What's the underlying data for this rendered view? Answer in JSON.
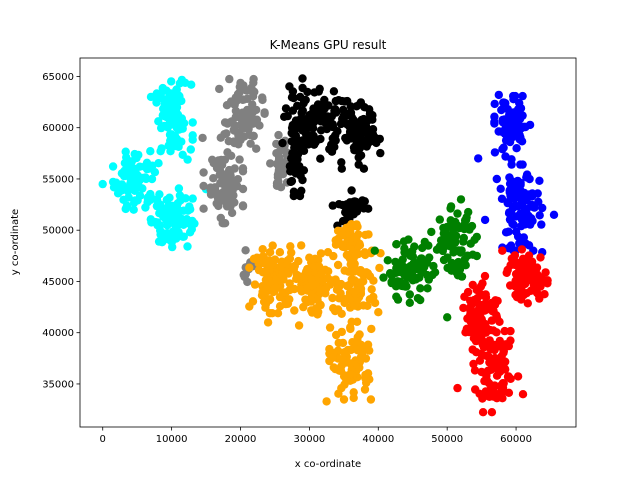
{
  "chart_data": {
    "type": "scatter",
    "title": "K-Means GPU result",
    "xlabel": "x co-ordinate",
    "ylabel": "y co-ordinate",
    "xlim": [
      -3300,
      68700
    ],
    "ylim": [
      30800,
      66800
    ],
    "xticks": [
      0,
      10000,
      20000,
      30000,
      40000,
      50000,
      60000
    ],
    "yticks": [
      35000,
      40000,
      45000,
      50000,
      55000,
      60000,
      65000
    ],
    "xtick_labels": [
      "0",
      "10000",
      "20000",
      "30000",
      "40000",
      "50000",
      "60000"
    ],
    "ytick_labels": [
      "35000",
      "40000",
      "45000",
      "50000",
      "55000",
      "60000",
      "65000"
    ],
    "grid": false,
    "clusters": [
      {
        "color": "#00ffff",
        "blobs": [
          {
            "cx": 10200,
            "cy": 60700,
            "sx": 1300,
            "sy": 1800,
            "n": 90
          },
          {
            "cx": 4800,
            "cy": 54900,
            "sx": 1500,
            "sy": 1400,
            "n": 85
          },
          {
            "cx": 10000,
            "cy": 51300,
            "sx": 1500,
            "sy": 1500,
            "n": 85
          }
        ],
        "extras": [
          [
            0,
            54500
          ],
          [
            7000,
            63000
          ],
          [
            11500,
            64500
          ],
          [
            15000,
            54000
          ]
        ]
      },
      {
        "color": "#808080",
        "blobs": [
          {
            "cx": 20200,
            "cy": 61000,
            "sx": 1500,
            "sy": 1700,
            "n": 85
          },
          {
            "cx": 17500,
            "cy": 54200,
            "sx": 1300,
            "sy": 1600,
            "n": 85
          },
          {
            "cx": 25800,
            "cy": 56200,
            "sx": 700,
            "sy": 1400,
            "n": 40
          },
          {
            "cx": 21300,
            "cy": 46500,
            "sx": 600,
            "sy": 700,
            "n": 12
          }
        ],
        "extras": [
          [
            14500,
            59000
          ],
          [
            22000,
            63500
          ]
        ]
      },
      {
        "color": "#000000",
        "blobs": [
          {
            "cx": 30500,
            "cy": 60500,
            "sx": 2000,
            "sy": 1600,
            "n": 100
          },
          {
            "cx": 36500,
            "cy": 59300,
            "sx": 1800,
            "sy": 1500,
            "n": 90
          },
          {
            "cx": 28000,
            "cy": 56200,
            "sx": 600,
            "sy": 1300,
            "n": 35
          },
          {
            "cx": 36000,
            "cy": 52200,
            "sx": 1200,
            "sy": 800,
            "n": 35
          }
        ],
        "extras": [
          [
            29000,
            64800
          ],
          [
            38000,
            62000
          ]
        ]
      },
      {
        "color": "#ffa500",
        "blobs": [
          {
            "cx": 24800,
            "cy": 45200,
            "sx": 1600,
            "sy": 1500,
            "n": 90
          },
          {
            "cx": 30600,
            "cy": 45000,
            "sx": 1600,
            "sy": 1600,
            "n": 90
          },
          {
            "cx": 36800,
            "cy": 44800,
            "sx": 1600,
            "sy": 1700,
            "n": 90
          },
          {
            "cx": 36000,
            "cy": 49000,
            "sx": 1400,
            "sy": 1000,
            "n": 40
          },
          {
            "cx": 36200,
            "cy": 37000,
            "sx": 1500,
            "sy": 1600,
            "n": 80
          }
        ],
        "extras": [
          [
            24000,
            41000
          ],
          [
            28500,
            40700
          ],
          [
            33000,
            40500
          ],
          [
            32500,
            33300
          ],
          [
            40000,
            42000
          ]
        ]
      },
      {
        "color": "#008000",
        "blobs": [
          {
            "cx": 44500,
            "cy": 46000,
            "sx": 1700,
            "sy": 1400,
            "n": 90
          },
          {
            "cx": 51000,
            "cy": 48800,
            "sx": 1500,
            "sy": 1600,
            "n": 80
          }
        ],
        "extras": [
          [
            52000,
            53000
          ],
          [
            50000,
            41500
          ],
          [
            39500,
            48000
          ]
        ]
      },
      {
        "color": "#0000ff",
        "blobs": [
          {
            "cx": 59500,
            "cy": 60000,
            "sx": 1200,
            "sy": 1400,
            "n": 80
          },
          {
            "cx": 60500,
            "cy": 52000,
            "sx": 1500,
            "sy": 2000,
            "n": 95
          }
        ],
        "extras": [
          [
            54500,
            57000
          ],
          [
            65500,
            51500
          ],
          [
            55500,
            51000
          ],
          [
            57500,
            63200
          ],
          [
            62500,
            48000
          ]
        ]
      },
      {
        "color": "#ff0000",
        "blobs": [
          {
            "cx": 61500,
            "cy": 45500,
            "sx": 1400,
            "sy": 1200,
            "n": 80
          },
          {
            "cx": 55000,
            "cy": 42000,
            "sx": 1200,
            "sy": 1600,
            "n": 80
          },
          {
            "cx": 57000,
            "cy": 36200,
            "sx": 1500,
            "sy": 1800,
            "n": 90
          }
        ],
        "extras": [
          [
            51500,
            34600
          ],
          [
            61000,
            34000
          ],
          [
            58000,
            48000
          ],
          [
            52500,
            43500
          ]
        ]
      }
    ]
  }
}
